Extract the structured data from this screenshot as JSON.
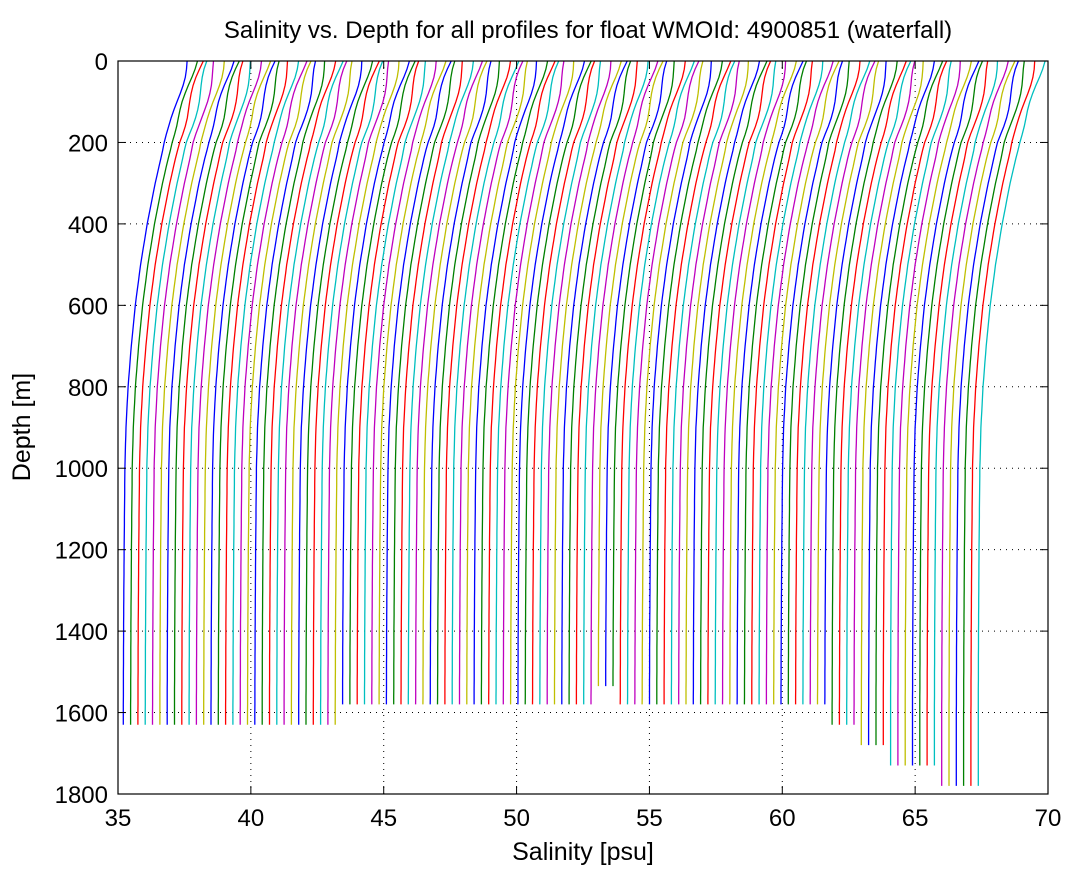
{
  "chart_data": {
    "type": "line",
    "title": "Salinity vs. Depth for all profiles for float WMOId: 4900851 (waterfall)",
    "xlabel": "Salinity [psu]",
    "ylabel": "Depth [m]",
    "xlim": [
      35,
      70
    ],
    "ylim": [
      0,
      1800
    ],
    "y_reversed": true,
    "x_ticks": [
      35,
      40,
      45,
      50,
      55,
      60,
      65,
      70
    ],
    "y_ticks": [
      0,
      200,
      400,
      600,
      800,
      1000,
      1200,
      1400,
      1600,
      1800
    ],
    "grid": true,
    "legend": "none",
    "waterfall": {
      "profile_count": 118,
      "first_profile_deep_salinity": 35.2,
      "offset_per_profile_psu": 0.275,
      "surface_depth_m": 0,
      "surface_salinity_anomaly_psu": 2.4,
      "profile_shape": [
        [
          0,
          2.4
        ],
        [
          50,
          2.2
        ],
        [
          100,
          2.0
        ],
        [
          150,
          1.8
        ],
        [
          200,
          1.55
        ],
        [
          300,
          1.2
        ],
        [
          400,
          0.9
        ],
        [
          500,
          0.65
        ],
        [
          600,
          0.45
        ],
        [
          700,
          0.3
        ],
        [
          800,
          0.18
        ],
        [
          900,
          0.1
        ],
        [
          1000,
          0.06
        ],
        [
          1200,
          0.03
        ],
        [
          1400,
          0.01
        ],
        [
          1600,
          0.0
        ]
      ],
      "max_depths_m": [
        {
          "from_profile": 0,
          "to_profile": 29,
          "depth": 1630
        },
        {
          "from_profile": 30,
          "to_profile": 64,
          "depth": 1580
        },
        {
          "from_profile": 65,
          "to_profile": 67,
          "depth": 1535
        },
        {
          "from_profile": 68,
          "to_profile": 96,
          "depth": 1580
        },
        {
          "from_profile": 97,
          "to_profile": 100,
          "depth": 1630
        },
        {
          "from_profile": 101,
          "to_profile": 104,
          "depth": 1680
        },
        {
          "from_profile": 105,
          "to_profile": 111,
          "depth": 1730
        },
        {
          "from_profile": 112,
          "to_profile": 117,
          "depth": 1780
        }
      ]
    },
    "series_colors": [
      "#0000ff",
      "#008000",
      "#ff0000",
      "#00bfbf",
      "#bf00bf",
      "#bfbf00"
    ]
  }
}
